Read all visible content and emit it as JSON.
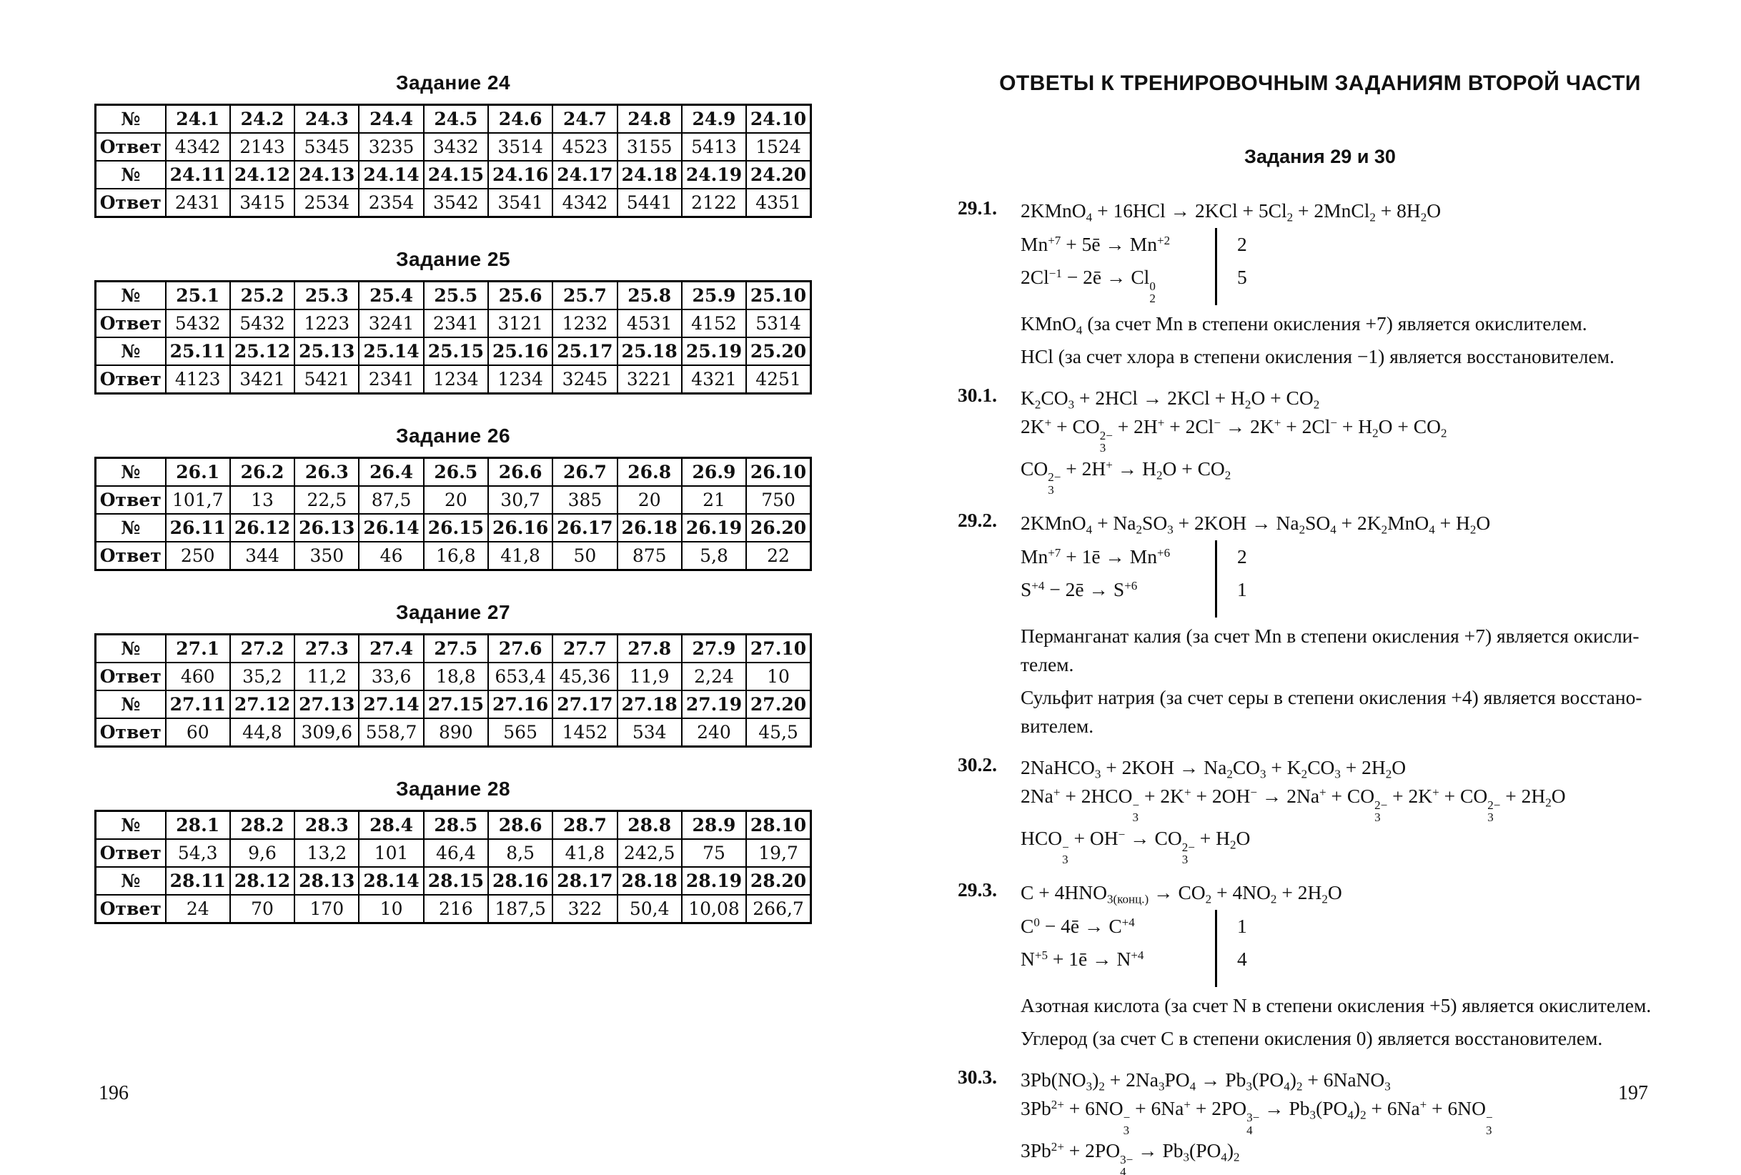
{
  "left_page": {
    "page_number": "196",
    "row_labels": {
      "number": "№",
      "answer": "Ответ"
    },
    "tables": [
      {
        "title": "Задание 24",
        "rows": [
          {
            "label": "№",
            "bold": true,
            "cells": [
              "24.1",
              "24.2",
              "24.3",
              "24.4",
              "24.5",
              "24.6",
              "24.7",
              "24.8",
              "24.9",
              "24.10"
            ]
          },
          {
            "label": "Ответ",
            "bold": false,
            "cells": [
              "4342",
              "2143",
              "5345",
              "3235",
              "3432",
              "3514",
              "4523",
              "3155",
              "5413",
              "1524"
            ]
          },
          {
            "label": "№",
            "bold": true,
            "cells": [
              "24.11",
              "24.12",
              "24.13",
              "24.14",
              "24.15",
              "24.16",
              "24.17",
              "24.18",
              "24.19",
              "24.20"
            ]
          },
          {
            "label": "Ответ",
            "bold": false,
            "cells": [
              "2431",
              "3415",
              "2534",
              "2354",
              "3542",
              "3541",
              "4342",
              "5441",
              "2122",
              "4351"
            ]
          }
        ]
      },
      {
        "title": "Задание 25",
        "rows": [
          {
            "label": "№",
            "bold": true,
            "cells": [
              "25.1",
              "25.2",
              "25.3",
              "25.4",
              "25.5",
              "25.6",
              "25.7",
              "25.8",
              "25.9",
              "25.10"
            ]
          },
          {
            "label": "Ответ",
            "bold": false,
            "cells": [
              "5432",
              "5432",
              "1223",
              "3241",
              "2341",
              "3121",
              "1232",
              "4531",
              "4152",
              "5314"
            ]
          },
          {
            "label": "№",
            "bold": true,
            "cells": [
              "25.11",
              "25.12",
              "25.13",
              "25.14",
              "25.15",
              "25.16",
              "25.17",
              "25.18",
              "25.19",
              "25.20"
            ]
          },
          {
            "label": "Ответ",
            "bold": false,
            "cells": [
              "4123",
              "3421",
              "5421",
              "2341",
              "1234",
              "1234",
              "3245",
              "3221",
              "4321",
              "4251"
            ]
          }
        ]
      },
      {
        "title": "Задание 26",
        "rows": [
          {
            "label": "№",
            "bold": true,
            "cells": [
              "26.1",
              "26.2",
              "26.3",
              "26.4",
              "26.5",
              "26.6",
              "26.7",
              "26.8",
              "26.9",
              "26.10"
            ]
          },
          {
            "label": "Ответ",
            "bold": false,
            "cells": [
              "101,7",
              "13",
              "22,5",
              "87,5",
              "20",
              "30,7",
              "385",
              "20",
              "21",
              "750"
            ]
          },
          {
            "label": "№",
            "bold": true,
            "cells": [
              "26.11",
              "26.12",
              "26.13",
              "26.14",
              "26.15",
              "26.16",
              "26.17",
              "26.18",
              "26.19",
              "26.20"
            ]
          },
          {
            "label": "Ответ",
            "bold": false,
            "cells": [
              "250",
              "344",
              "350",
              "46",
              "16,8",
              "41,8",
              "50",
              "875",
              "5,8",
              "22"
            ]
          }
        ]
      },
      {
        "title": "Задание 27",
        "rows": [
          {
            "label": "№",
            "bold": true,
            "cells": [
              "27.1",
              "27.2",
              "27.3",
              "27.4",
              "27.5",
              "27.6",
              "27.7",
              "27.8",
              "27.9",
              "27.10"
            ]
          },
          {
            "label": "Ответ",
            "bold": false,
            "cells": [
              "460",
              "35,2",
              "11,2",
              "33,6",
              "18,8",
              "653,4",
              "45,36",
              "11,9",
              "2,24",
              "10"
            ]
          },
          {
            "label": "№",
            "bold": true,
            "cells": [
              "27.11",
              "27.12",
              "27.13",
              "27.14",
              "27.15",
              "27.16",
              "27.17",
              "27.18",
              "27.19",
              "27.20"
            ]
          },
          {
            "label": "Ответ",
            "bold": false,
            "cells": [
              "60",
              "44,8",
              "309,6",
              "558,7",
              "890",
              "565",
              "1452",
              "534",
              "240",
              "45,5"
            ]
          }
        ]
      },
      {
        "title": "Задание 28",
        "rows": [
          {
            "label": "№",
            "bold": true,
            "cells": [
              "28.1",
              "28.2",
              "28.3",
              "28.4",
              "28.5",
              "28.6",
              "28.7",
              "28.8",
              "28.9",
              "28.10"
            ]
          },
          {
            "label": "Ответ",
            "bold": false,
            "cells": [
              "54,3",
              "9,6",
              "13,2",
              "101",
              "46,4",
              "8,5",
              "41,8",
              "242,5",
              "75",
              "19,7"
            ]
          },
          {
            "label": "№",
            "bold": true,
            "cells": [
              "28.11",
              "28.12",
              "28.13",
              "28.14",
              "28.15",
              "28.16",
              "28.17",
              "28.18",
              "28.19",
              "28.20"
            ]
          },
          {
            "label": "Ответ",
            "bold": false,
            "cells": [
              "24",
              "70",
              "170",
              "10",
              "216",
              "187,5",
              "322",
              "50,4",
              "10,08",
              "266,7"
            ]
          }
        ]
      }
    ]
  },
  "right_page": {
    "page_number": "197",
    "header": "ОТВЕТЫ К ТРЕНИРОВОЧНЫМ ЗАДАНИЯМ ВТОРОЙ ЧАСТИ",
    "subtitle": "Задания 29 и 30",
    "items": [
      {
        "number": "29.1.",
        "equation": "2KMnO<sub>4</sub> + 16HCl → 2KCl + 5Cl<sub>2</sub> + 2MnCl<sub>2</sub> + 8H<sub>2</sub>O",
        "half_reactions": [
          {
            "formula": "Mn<sup>+7</sup> + 5ē → Mn<sup>+2</sup>",
            "coefficient": "2"
          },
          {
            "formula": "2Cl<sup>−1</sup> − 2ē → Cl<span class=\"st\"><span>0</span><span>2</span></span>",
            "coefficient": "5"
          }
        ],
        "notes": [
          "KMnO<sub>4</sub> (за счет Mn в степени окисления +7) является окислителем.",
          "HCl (за счет хлора в степени окисления −1) является восстановителем."
        ]
      },
      {
        "number": "30.1.",
        "lines": [
          "K<sub>2</sub>CO<sub>3</sub> + 2HCl → 2KCl + H<sub>2</sub>O + CO<sub>2</sub>",
          "2K<sup>+</sup> + CO<span class=\"st\"><span>2−</span><span>3</span></span> + 2H<sup>+</sup> + 2Cl<sup>−</sup> → 2K<sup>+</sup> + 2Cl<sup>−</sup> + H<sub>2</sub>O + CO<sub>2</sub>",
          "CO<span class=\"st\"><span>2−</span><span>3</span></span> + 2H<sup>+</sup> → H<sub>2</sub>O + CO<sub>2</sub>"
        ]
      },
      {
        "number": "29.2.",
        "equation": "2KMnO<sub>4</sub> + Na<sub>2</sub>SO<sub>3</sub> + 2KOH → Na<sub>2</sub>SO<sub>4</sub> + 2K<sub>2</sub>MnO<sub>4</sub> + H<sub>2</sub>O",
        "half_reactions": [
          {
            "formula": "Mn<sup>+7</sup> + 1ē → Mn<sup>+6</sup>",
            "coefficient": "2"
          },
          {
            "formula": "S<sup>+4</sup> − 2ē → S<sup>+6</sup>",
            "coefficient": "1"
          }
        ],
        "notes": [
          "Перманганат калия (за счет Mn в степени окисления +7) является окисли­телем.",
          "Сульфит натрия (за счет серы в степени окисления +4) является восстано­вителем."
        ]
      },
      {
        "number": "30.2.",
        "lines": [
          "2NaHCO<sub>3</sub> + 2KOH → Na<sub>2</sub>CO<sub>3</sub> + K<sub>2</sub>CO<sub>3</sub> + 2H<sub>2</sub>O",
          "2Na<sup>+</sup> + 2HCO<span class=\"st\"><span>−</span><span>3</span></span> + 2K<sup>+</sup> + 2OH<sup>−</sup> → 2Na<sup>+</sup> + CO<span class=\"st\"><span>2−</span><span>3</span></span> + 2K<sup>+</sup> + CO<span class=\"st\"><span>2−</span><span>3</span></span> + 2H<sub>2</sub>O",
          "HCO<span class=\"st\"><span>−</span><span>3</span></span> + OH<sup>−</sup> → CO<span class=\"st\"><span>2−</span><span>3</span></span> + H<sub>2</sub>O"
        ]
      },
      {
        "number": "29.3.",
        "equation": "C + 4HNO<sub>3(конц.)</sub> → CO<sub>2</sub> + 4NO<sub>2</sub> + 2H<sub>2</sub>O",
        "half_reactions": [
          {
            "formula": "C<sup>0</sup> − 4ē → C<sup>+4</sup>",
            "coefficient": "1"
          },
          {
            "formula": "N<sup>+5</sup> + 1ē → N<sup>+4</sup>",
            "coefficient": "4"
          }
        ],
        "notes": [
          "Азотная кислота (за счет N в степени окисления +5) является окислителем.",
          "Углерод (за счет C в степени окисления 0) является восстановителем."
        ]
      },
      {
        "number": "30.3.",
        "lines": [
          "3Pb(NO<sub>3</sub>)<sub>2</sub> + 2Na<sub>3</sub>PO<sub>4</sub> → Pb<sub>3</sub>(PO<sub>4</sub>)<sub>2</sub> + 6NaNO<sub>3</sub>",
          "3Pb<sup>2+</sup> + 6NO<span class=\"st\"><span>−</span><span>3</span></span> + 6Na<sup>+</sup> + 2PO<span class=\"st\"><span>3−</span><span>4</span></span> → Pb<sub>3</sub>(PO<sub>4</sub>)<sub>2</sub> + 6Na<sup>+</sup> + 6NO<span class=\"st\"><span>−</span><span>3</span></span>",
          "3Pb<sup>2+</sup> + 2PO<span class=\"st\"><span>3−</span><span>4</span></span> → Pb<sub>3</sub>(PO<sub>4</sub>)<sub>2</sub>"
        ]
      }
    ]
  }
}
